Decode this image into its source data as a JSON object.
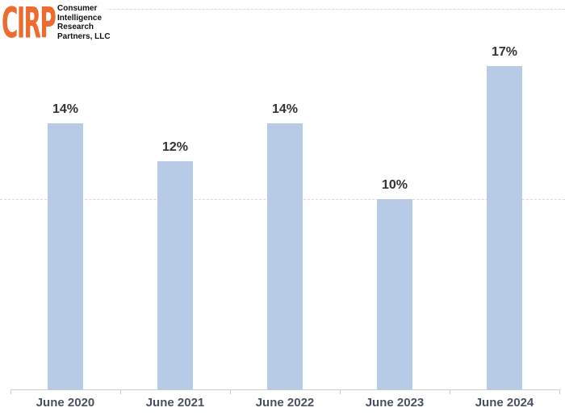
{
  "logo": {
    "acronym": "CIRP",
    "company_lines": [
      "Consumer",
      "Intelligence",
      "Research",
      "Partners, LLC"
    ],
    "accent_color": "#ED6B2D",
    "text_color": "#111111"
  },
  "chart_data": {
    "type": "bar",
    "categories": [
      "June 2020",
      "June 2021",
      "June 2022",
      "June 2023",
      "June 2024"
    ],
    "values": [
      14,
      12,
      14,
      10,
      17
    ],
    "value_labels": [
      "14%",
      "12%",
      "14%",
      "10%",
      "17%"
    ],
    "title": "",
    "xlabel": "",
    "ylabel": "",
    "ylim": [
      0,
      20
    ],
    "gridline_values": [
      10,
      20
    ],
    "grid_style": "horizontal dashed",
    "legend": "none",
    "bar_color": "#b7cae6",
    "value_label_color": "#343434",
    "category_label_color": "#4a5160",
    "axis_line_color": "#cfcccc",
    "gridline_color": "#ddd6d6"
  }
}
